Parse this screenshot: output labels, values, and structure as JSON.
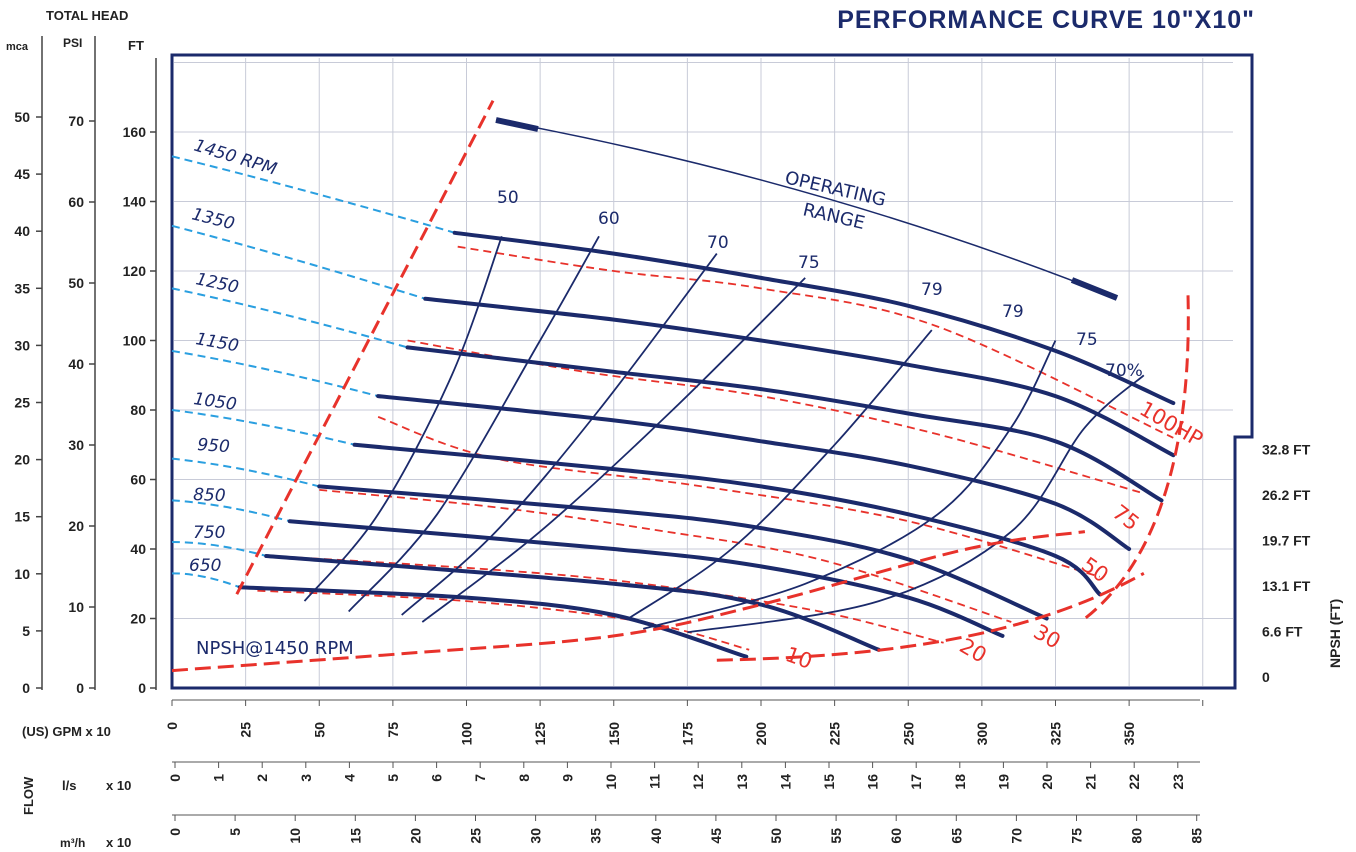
{
  "header": {
    "total_head_label": "TOTAL HEAD",
    "mca_label": "mca",
    "psi_label": "PSI",
    "ft_label": "FT",
    "title": "PERFORMANCE CURVE 10\"X10\""
  },
  "colors": {
    "navy": "#1b2a6b",
    "red": "#e8322b",
    "light_blue": "#2a9fe0",
    "grid": "#c8cbd8"
  },
  "scales": {
    "mca": [
      "0",
      "5",
      "10",
      "15",
      "20",
      "25",
      "30",
      "35",
      "40",
      "45",
      "50"
    ],
    "psi": [
      "0",
      "10",
      "20",
      "30",
      "40",
      "50",
      "60",
      "70"
    ],
    "ft": [
      "0",
      "20",
      "40",
      "60",
      "80",
      "100",
      "120",
      "140",
      "160"
    ],
    "npsh": [
      "0",
      "6.6 FT",
      "13.1 FT",
      "19.7 FT",
      "26.2 FT",
      "32.8 FT"
    ],
    "npsh_axis_label": "NPSH (FT)"
  },
  "flow_axes": {
    "gpm_label": "(US) GPM  x 10",
    "gpm_ticks": [
      "0",
      "25",
      "50",
      "75",
      "100",
      "125",
      "150",
      "175",
      "200",
      "225",
      "250",
      "300",
      "325",
      "350"
    ],
    "flow_label": "FLOW",
    "ls_label": "l/s",
    "ls_mult": "x 10",
    "ls_ticks": [
      "0",
      "1",
      "2",
      "3",
      "4",
      "5",
      "6",
      "7",
      "8",
      "9",
      "10",
      "11",
      "12",
      "13",
      "14",
      "15",
      "16",
      "17",
      "18",
      "19",
      "20",
      "21",
      "22",
      "23"
    ],
    "m3h_label": "m³/h",
    "m3h_mult": "x 10",
    "m3h_ticks": [
      "0",
      "5",
      "10",
      "15",
      "20",
      "25",
      "30",
      "35",
      "40",
      "45",
      "50",
      "55",
      "60",
      "65",
      "70",
      "75",
      "80",
      "85"
    ]
  },
  "chart_data": {
    "type": "line",
    "title": "PERFORMANCE CURVE 10\"X10\"",
    "xlabel": "(US) GPM x 10",
    "ylabel": "TOTAL HEAD FT",
    "xlim": [
      0,
      350
    ],
    "ylim": [
      0,
      180
    ],
    "grid": true,
    "head_curves": [
      {
        "name": "1450 RPM",
        "points": [
          [
            96,
            131
          ],
          [
            150,
            125
          ],
          [
            200,
            118
          ],
          [
            250,
            110
          ],
          [
            300,
            97
          ],
          [
            340,
            82
          ]
        ]
      },
      {
        "name": "1350",
        "points": [
          [
            86,
            112
          ],
          [
            150,
            106
          ],
          [
            200,
            100
          ],
          [
            250,
            93
          ],
          [
            300,
            84
          ],
          [
            340,
            67
          ]
        ]
      },
      {
        "name": "1250",
        "points": [
          [
            80,
            98
          ],
          [
            150,
            91
          ],
          [
            200,
            86
          ],
          [
            250,
            79
          ],
          [
            300,
            71
          ],
          [
            336,
            54
          ]
        ]
      },
      {
        "name": "1150",
        "points": [
          [
            70,
            84
          ],
          [
            150,
            77
          ],
          [
            200,
            71
          ],
          [
            250,
            64
          ],
          [
            300,
            53
          ],
          [
            325,
            40
          ]
        ]
      },
      {
        "name": "1050",
        "points": [
          [
            62,
            70
          ],
          [
            150,
            63
          ],
          [
            200,
            58
          ],
          [
            250,
            50
          ],
          [
            300,
            38
          ],
          [
            315,
            27
          ]
        ]
      },
      {
        "name": "950",
        "points": [
          [
            50,
            58
          ],
          [
            150,
            51
          ],
          [
            200,
            46
          ],
          [
            250,
            37
          ],
          [
            297,
            20
          ]
        ]
      },
      {
        "name": "850",
        "points": [
          [
            40,
            48
          ],
          [
            150,
            40
          ],
          [
            200,
            35
          ],
          [
            250,
            26
          ],
          [
            282,
            15
          ]
        ]
      },
      {
        "name": "750",
        "points": [
          [
            32,
            38
          ],
          [
            150,
            30
          ],
          [
            200,
            24
          ],
          [
            240,
            11
          ]
        ]
      },
      {
        "name": "650",
        "points": [
          [
            23,
            29
          ],
          [
            100,
            26
          ],
          [
            150,
            21
          ],
          [
            195,
            9
          ]
        ]
      }
    ],
    "efficiency_curves": [
      {
        "name": "50",
        "points": [
          [
            45,
            25
          ],
          [
            70,
            50
          ],
          [
            95,
            90
          ],
          [
            112,
            130
          ]
        ]
      },
      {
        "name": "60",
        "points": [
          [
            60,
            22
          ],
          [
            90,
            50
          ],
          [
            125,
            100
          ],
          [
            145,
            130
          ]
        ]
      },
      {
        "name": "70",
        "points": [
          [
            78,
            21
          ],
          [
            110,
            45
          ],
          [
            145,
            80
          ],
          [
            185,
            125
          ]
        ]
      },
      {
        "name": "75",
        "points": [
          [
            85,
            19
          ],
          [
            125,
            45
          ],
          [
            170,
            80
          ],
          [
            215,
            118
          ]
        ]
      },
      {
        "name": "79",
        "points": [
          [
            155,
            20
          ],
          [
            190,
            40
          ],
          [
            225,
            70
          ],
          [
            258,
            103
          ]
        ]
      },
      {
        "name": "79",
        "points": [
          [
            160,
            17
          ],
          [
            215,
            30
          ],
          [
            260,
            50
          ],
          [
            285,
            75
          ],
          [
            300,
            100
          ]
        ]
      },
      {
        "name": "75",
        "points": [
          [
            175,
            16
          ],
          [
            240,
            25
          ],
          [
            285,
            45
          ],
          [
            310,
            75
          ],
          [
            330,
            90
          ]
        ]
      }
    ],
    "efficiency_70_label": "70%",
    "power_lines": [
      {
        "name": "10",
        "points": [
          [
            29,
            28
          ],
          [
            100,
            25
          ],
          [
            160,
            19
          ],
          [
            196,
            11
          ]
        ]
      },
      {
        "name": "20",
        "points": [
          [
            34,
            38
          ],
          [
            110,
            34
          ],
          [
            160,
            30
          ],
          [
            220,
            22
          ],
          [
            262,
            13
          ]
        ]
      },
      {
        "name": "30",
        "points": [
          [
            50,
            57
          ],
          [
            110,
            52
          ],
          [
            160,
            46
          ],
          [
            220,
            37
          ],
          [
            285,
            19
          ]
        ]
      },
      {
        "name": "50",
        "points": [
          [
            70,
            78
          ],
          [
            110,
            66
          ],
          [
            180,
            58
          ],
          [
            250,
            48
          ],
          [
            315,
            32
          ]
        ]
      },
      {
        "name": "75",
        "points": [
          [
            80,
            100
          ],
          [
            140,
            91
          ],
          [
            200,
            84
          ],
          [
            260,
            73
          ],
          [
            330,
            56
          ]
        ]
      },
      {
        "name": "100HP",
        "points": [
          [
            97,
            127
          ],
          [
            150,
            120
          ],
          [
            200,
            115
          ],
          [
            260,
            104
          ],
          [
            340,
            72
          ]
        ]
      }
    ],
    "operating_range": {
      "label_line1": "OPERATING",
      "label_line2": "RANGE"
    },
    "npsh_label": "NPSH@1450 RPM",
    "npsh_curve": [
      [
        0,
        5
      ],
      [
        80,
        10
      ],
      [
        150,
        15
      ],
      [
        200,
        24
      ],
      [
        270,
        40
      ],
      [
        310,
        45
      ]
    ]
  }
}
